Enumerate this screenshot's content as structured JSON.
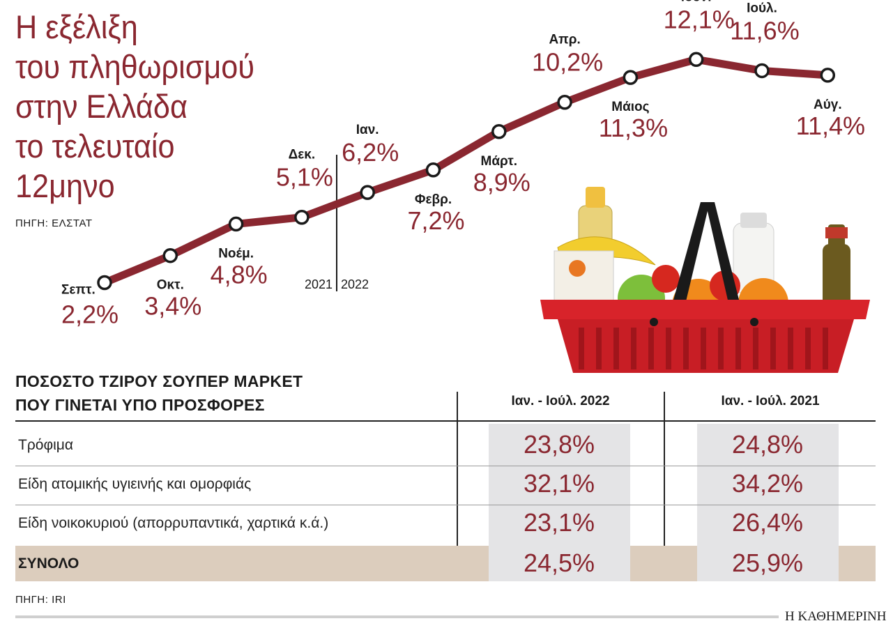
{
  "title_lines": [
    "Η εξέλιξη",
    "του πληθωρισμού",
    "στην Ελλάδα",
    "το τελευταίο",
    "12μηνο"
  ],
  "source_chart": "ΠΗΓΗ: ΕΛΣΤΑΤ",
  "chart_data": {
    "type": "line",
    "title": "Η εξέλιξη του πληθωρισμού στην Ελλάδα το τελευταίο 12μηνο",
    "categories": [
      "Σεπτ.",
      "Οκτ.",
      "Νοέμ.",
      "Δεκ.",
      "Ιαν.",
      "Φεβρ.",
      "Μάρτ.",
      "Απρ.",
      "Μάιος",
      "Ιούν.",
      "Ιούλ.",
      "Αύγ."
    ],
    "series": [
      {
        "values": [
          2.2,
          3.4,
          4.8,
          5.1,
          6.2,
          7.2,
          8.9,
          10.2,
          11.3,
          12.1,
          11.6,
          11.4
        ]
      }
    ],
    "value_labels": [
      "2,2%",
      "3,4%",
      "4,8%",
      "5,1%",
      "6,2%",
      "7,2%",
      "8,9%",
      "10,2%",
      "11,3%",
      "12,1%",
      "11,6%",
      "11,4%"
    ],
    "year_divider": {
      "left": "2021",
      "right": "2022"
    },
    "unit": "%",
    "colors": {
      "line": "#8a2730",
      "marker_fill": "#ffffff",
      "marker_stroke": "#1a1a1a",
      "labels": "#8a2730"
    }
  },
  "table": {
    "heading_lines": [
      "ΠΟΣΟΣΤΟ ΤΖΙΡΟΥ ΣΟΥΠΕΡ ΜΑΡΚΕΤ",
      "ΠΟΥ ΓΙΝΕΤΑΙ ΥΠΟ ΠΡΟΣΦΟΡΕΣ"
    ],
    "columns": [
      "Ιαν. - Ιούλ. 2022",
      "Ιαν. - Ιούλ. 2021"
    ],
    "rows": [
      {
        "label": "Τρόφιμα",
        "v2022": "23,8%",
        "v2021": "24,8%"
      },
      {
        "label": "Είδη ατομικής υγιεινής και ομορφιάς",
        "v2022": "32,1%",
        "v2021": "34,2%"
      },
      {
        "label": "Είδη νοικοκυριού (απορρυπαντικά, χαρτικά κ.ά.)",
        "v2022": "23,1%",
        "v2021": "26,4%"
      }
    ],
    "total": {
      "label": "ΣΥΝΟΛΟ",
      "v2022": "24,5%",
      "v2021": "25,9%"
    }
  },
  "source_table": "ΠΗΓΗ: IRI",
  "brand": "Η ΚΑΘΗΜΕΡΙΝΗ",
  "colors": {
    "accent": "#8a2730",
    "cell_shade": "#e4e4e6",
    "total_row": "#dccdbd"
  }
}
